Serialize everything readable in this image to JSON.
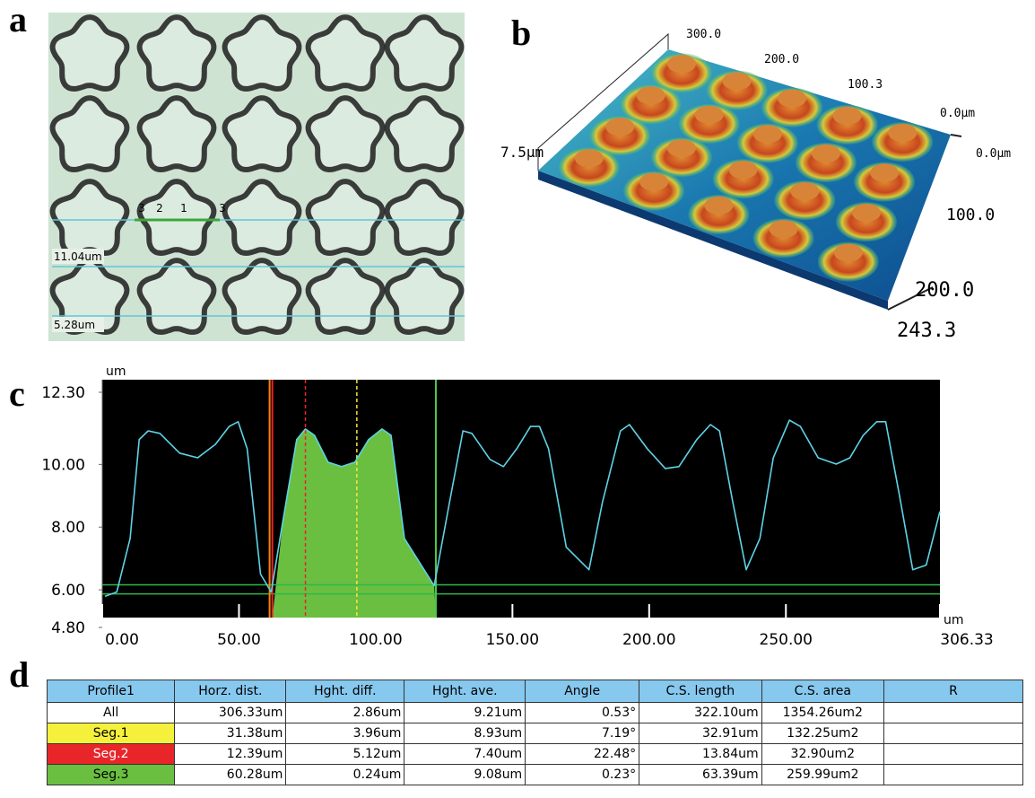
{
  "panel_labels": [
    "a",
    "b",
    "c",
    "d"
  ],
  "image_a": {
    "markers": [
      "3",
      "2",
      "1",
      "3"
    ],
    "labels": [
      "11.04um",
      "5.28um"
    ]
  },
  "image_b": {
    "labels": [
      "300.0",
      "200.0",
      "100.3",
      "0.0μm",
      "0.0μm",
      "7.5μm",
      "100.0",
      "200.0",
      "243.3"
    ]
  },
  "chart_data": {
    "type": "line",
    "x_unit": "um",
    "y_unit": "um",
    "x": [
      1.0,
      5.3,
      10.2,
      13.5,
      16.8,
      21.1,
      28.3,
      34.9,
      41.4,
      46.4,
      49.7,
      53.0,
      57.9,
      61.8,
      66.1,
      71.1,
      74.3,
      77.6,
      82.6,
      87.5,
      92.4,
      97.4,
      102.3,
      105.6,
      110.5,
      121.4,
      127.0,
      131.9,
      135.2,
      141.8,
      146.7,
      151.6,
      156.6,
      159.9,
      163.2,
      169.7,
      178.0,
      182.9,
      189.5,
      192.8,
      199.3,
      205.9,
      210.9,
      217.4,
      222.4,
      225.7,
      230.6,
      235.5,
      240.5,
      245.4,
      251.3,
      255.3,
      261.8,
      268.4,
      273.4,
      278.3,
      283.2,
      286.5,
      291.4,
      296.4,
      301.3,
      306.33
    ],
    "series": [
      {
        "color": "#5fd3e6",
        "values": [
          5.79,
          5.93,
          7.64,
          10.79,
          11.07,
          10.99,
          10.36,
          10.21,
          10.64,
          11.21,
          11.36,
          10.5,
          6.5,
          5.93,
          8.21,
          10.79,
          11.13,
          10.93,
          10.07,
          9.93,
          10.07,
          10.79,
          11.13,
          10.93,
          7.64,
          6.13,
          8.79,
          11.07,
          10.99,
          10.16,
          9.93,
          10.5,
          11.21,
          11.21,
          10.5,
          7.36,
          6.64,
          8.79,
          11.07,
          11.27,
          10.5,
          9.87,
          9.93,
          10.79,
          11.27,
          11.07,
          8.79,
          6.64,
          7.64,
          10.21,
          11.41,
          11.21,
          10.21,
          10.01,
          10.21,
          10.93,
          11.36,
          11.36,
          9.07,
          6.64,
          6.79,
          8.5
        ]
      }
    ],
    "xlim": [
      0,
      306.33
    ],
    "ylim": [
      4.8,
      12.3
    ],
    "xticks": [
      {
        "value": 0,
        "label": "0.00"
      },
      {
        "value": 50,
        "label": "50.00"
      },
      {
        "value": 100,
        "label": "100.00"
      },
      {
        "value": 150,
        "label": "150.00"
      },
      {
        "value": 200,
        "label": "200.00"
      },
      {
        "value": 250,
        "label": "250.00"
      },
      {
        "value": 306.33,
        "label": "306.33"
      }
    ],
    "yticks": [
      {
        "value": 4.8,
        "label": "4.80"
      },
      {
        "value": 6,
        "label": "6.00"
      },
      {
        "value": 8,
        "label": "8.00"
      },
      {
        "value": 10,
        "label": "10.00"
      },
      {
        "value": 12.3,
        "label": "12.30"
      }
    ],
    "cursors": [
      {
        "x": 61.2,
        "color": "#ff8000",
        "style": "solid"
      },
      {
        "x": 62.2,
        "color": "#e8262a",
        "style": "solid"
      },
      {
        "x": 74.3,
        "color": "#e8262a",
        "style": "dashed"
      },
      {
        "x": 93.1,
        "color": "#f5e63c",
        "style": "dashed"
      },
      {
        "x": 122.0,
        "color": "#4cc84c",
        "style": "solid"
      }
    ],
    "hlines": [
      {
        "y": 6.16,
        "color": "#2fb84a"
      },
      {
        "y": 5.87,
        "color": "#2fb84a"
      }
    ],
    "fill": {
      "from": 62.2,
      "to": 122.0,
      "color": "#6abf40"
    }
  },
  "table": {
    "header": [
      "Profile1",
      "Horz. dist.",
      "Hght. diff.",
      "Hght. ave.",
      "Angle",
      "C.S. length",
      "C.S. area",
      "R"
    ],
    "rows": [
      [
        "All",
        "306.33um",
        "2.86um",
        "9.21um",
        "0.53°",
        "322.10um",
        "1354.26um2"
      ],
      [
        "Seg.1",
        "31.38um",
        "3.96um",
        "8.93um",
        "7.19°",
        "32.91um",
        "132.25um2"
      ],
      [
        "Seg.2",
        "12.39um",
        "5.12um",
        "7.40um",
        "22.48°",
        "13.84um",
        "32.90um2"
      ],
      [
        "Seg.3",
        "60.28um",
        "0.24um",
        "9.08um",
        "0.23°",
        "63.39um",
        "259.99um2"
      ]
    ],
    "row_colors": [
      "#ffffff",
      "#f5f03c",
      "#e8262a",
      "#6abf40"
    ]
  }
}
